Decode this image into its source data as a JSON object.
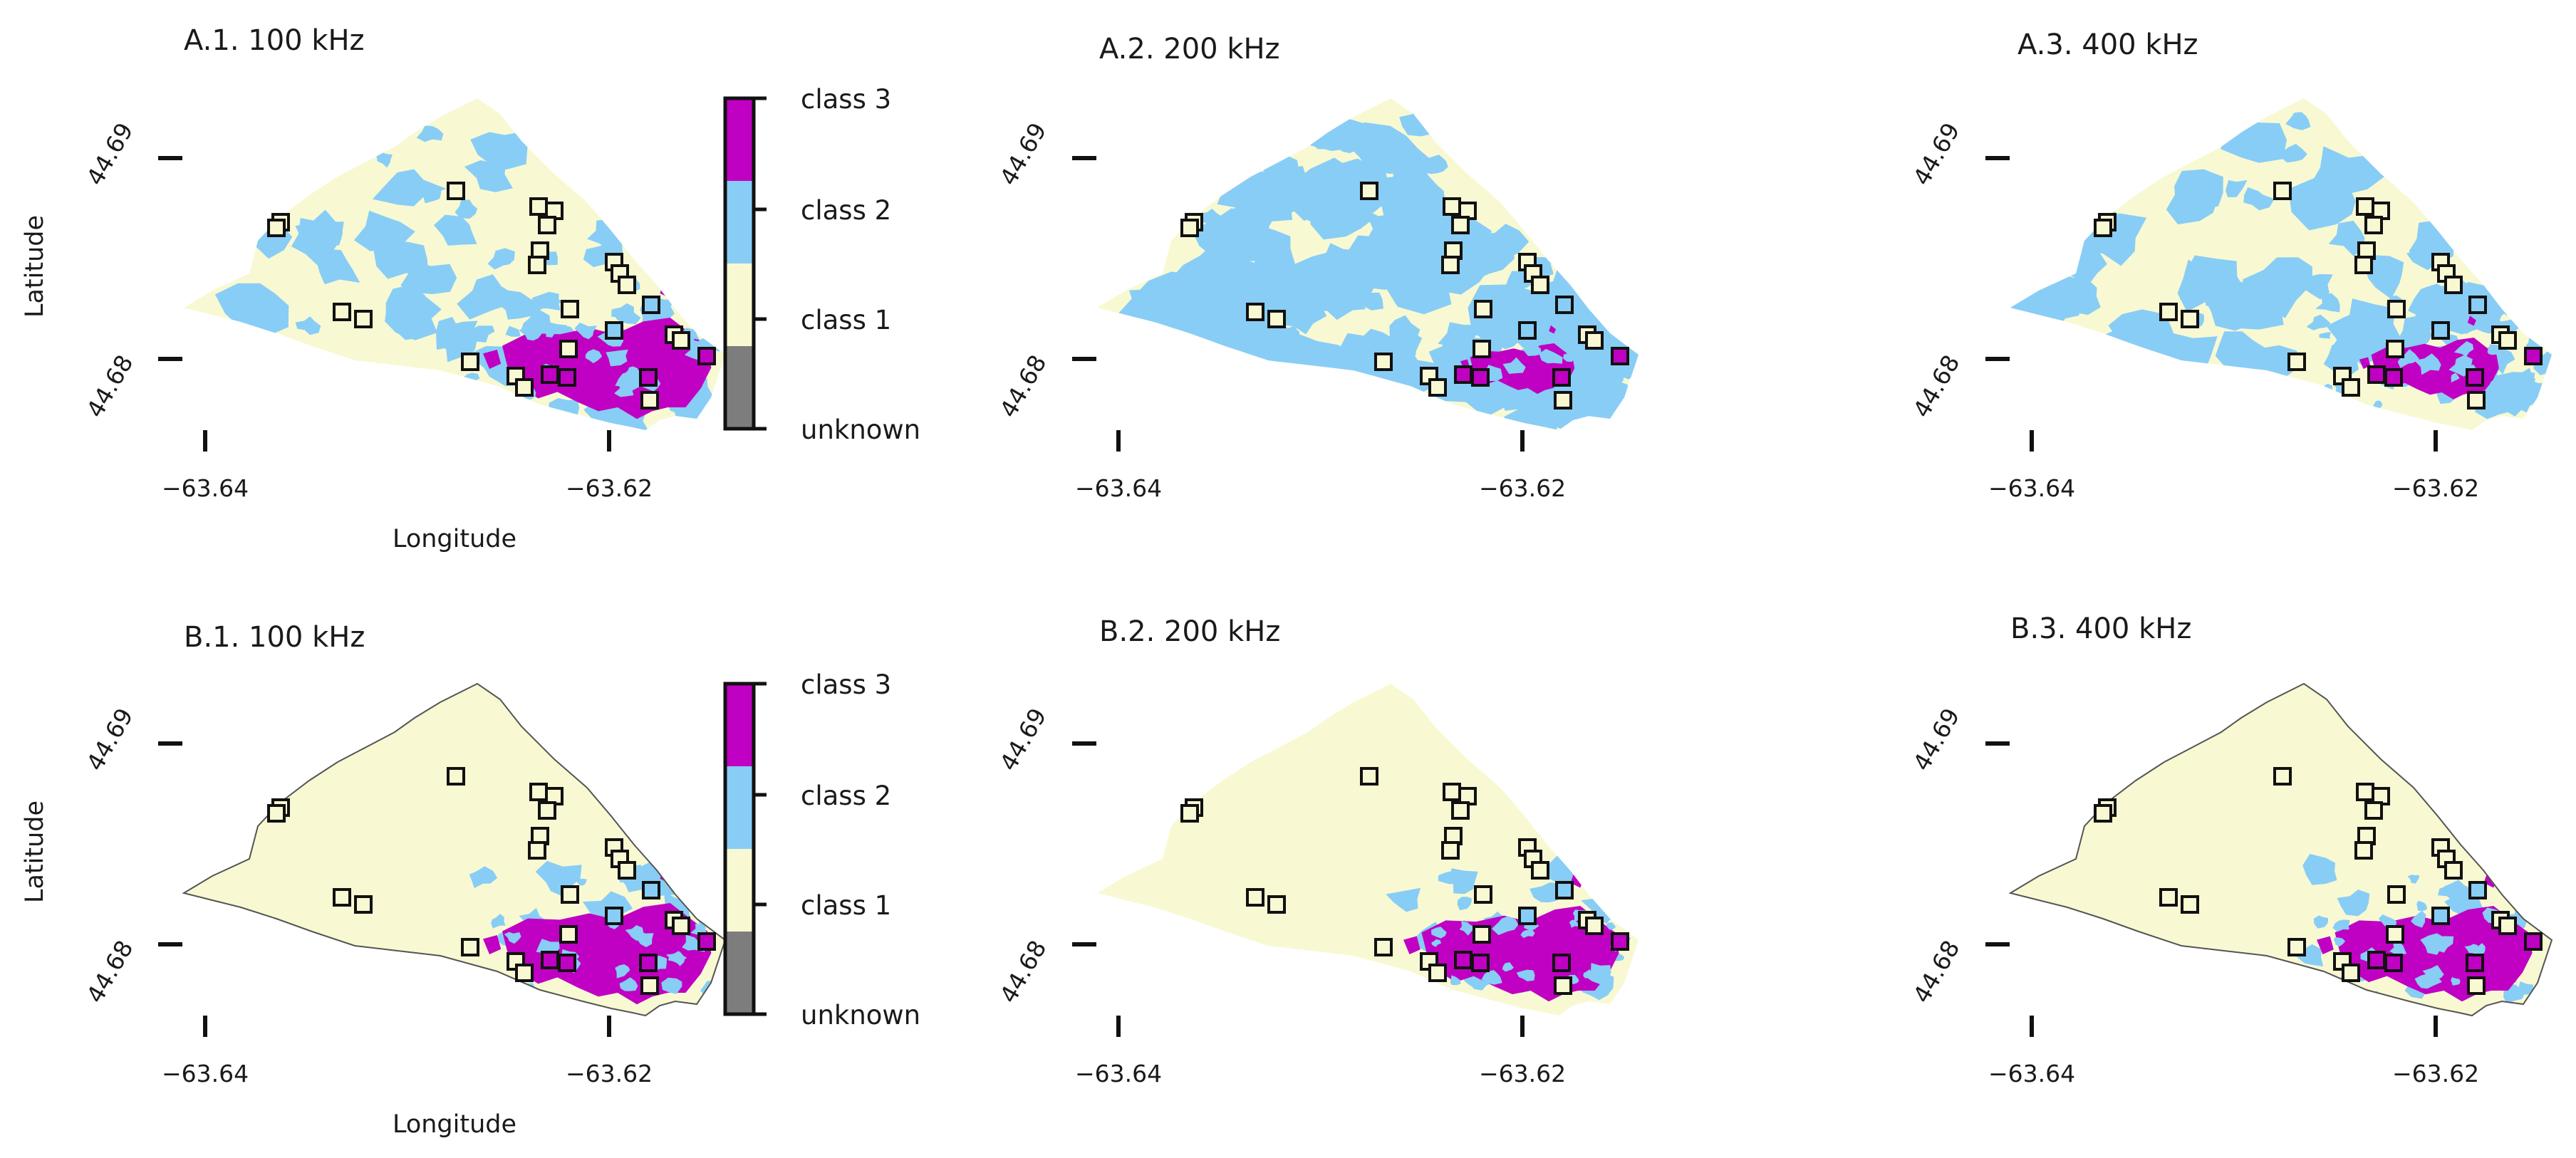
{
  "colors": {
    "class1": "#f8f9d2",
    "class2": "#88cdf6",
    "class3": "#c000c2",
    "unknown": "#7d7d7d",
    "sample_edge": "#111111"
  },
  "legend": {
    "labels": [
      "class 3",
      "class 2",
      "class 1",
      "unknown"
    ]
  },
  "axis": {
    "xlabel": "Longitude",
    "ylabel": "Latitude",
    "xticks": [
      "−63.64",
      "−63.62"
    ],
    "yticks": [
      "44.69",
      "44.68"
    ]
  },
  "panels": [
    {
      "title": "A.1. 100 kHz",
      "prop": 0.24,
      "thin": 0.55,
      "east": 0.9,
      "outline": false
    },
    {
      "title": "A.2. 200 kHz",
      "prop": 0.56,
      "thin": 0.42,
      "east": 0.45,
      "outline": false
    },
    {
      "title": "A.3. 400 kHz",
      "prop": 0.3,
      "thin": 0.5,
      "east": 0.55,
      "outline": false
    },
    {
      "title": "B.1. 100 kHz",
      "prop": 0.0,
      "thin": 0.35,
      "east": 0.9,
      "outline": true
    },
    {
      "title": "B.2. 200 kHz",
      "prop": 0.0,
      "thin": 0.35,
      "east": 0.85,
      "outline": false
    },
    {
      "title": "B.3. 400 kHz",
      "prop": 0.0,
      "thin": 0.35,
      "east": 0.85,
      "outline": true
    }
  ]
}
